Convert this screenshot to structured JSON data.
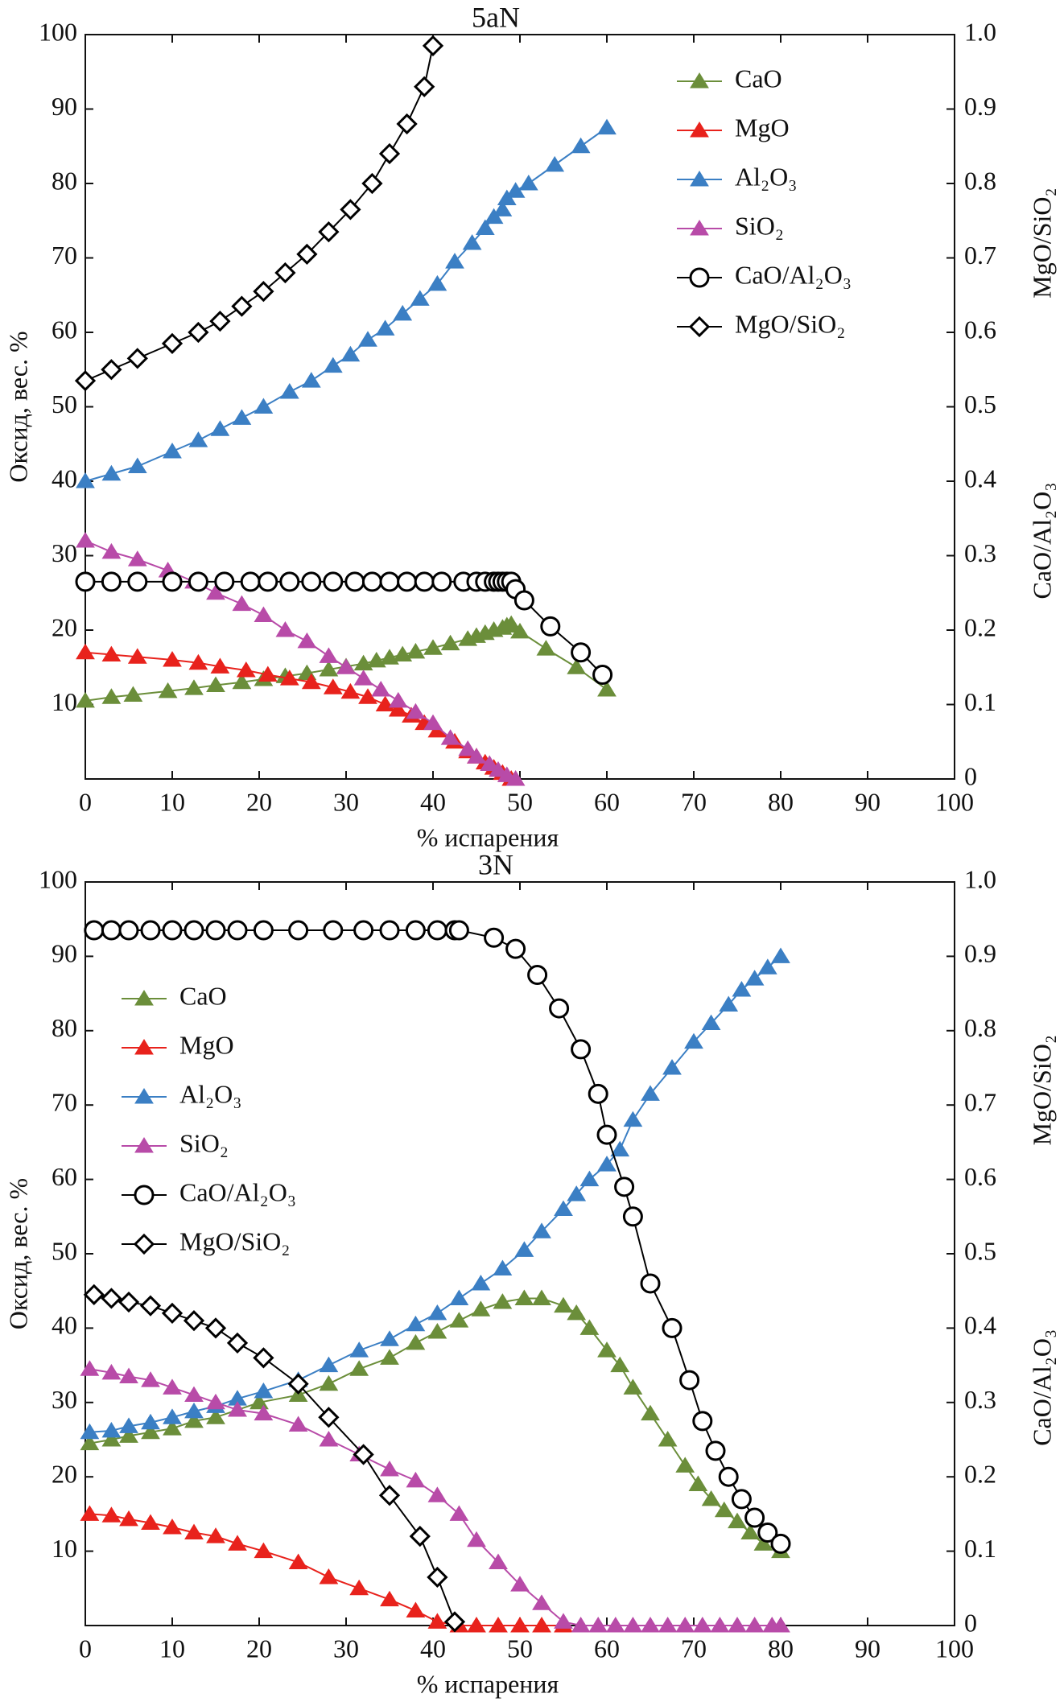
{
  "chart_data": [
    {
      "type": "line",
      "title": "5aN",
      "xlabel": "% испарения",
      "ylabel": "Оксид, вес. %",
      "y2labels": [
        "MgO/SiO₂",
        "CaO/Al₂O₃"
      ],
      "xlim": [
        0,
        100
      ],
      "ylim": [
        0,
        100
      ],
      "y2lim": [
        0,
        1
      ],
      "xticks": [
        0,
        10,
        20,
        30,
        40,
        50,
        60,
        70,
        80,
        90,
        100
      ],
      "yticks": [
        10,
        20,
        30,
        40,
        50,
        60,
        70,
        80,
        90,
        100
      ],
      "y2ticks": [
        0,
        0.1,
        0.2,
        0.3,
        0.4,
        0.5,
        0.6,
        0.7,
        0.8,
        0.9,
        {
          "value": 1,
          "label": "1.0"
        }
      ],
      "legend": "upper right",
      "series": [
        {
          "name": "CaO",
          "color": "#6b8e3a",
          "marker": "triangle",
          "x": [
            0,
            3,
            5.5,
            9.5,
            12.5,
            15,
            18,
            20.5,
            23,
            25.5,
            28,
            30,
            32,
            33.5,
            35,
            36.5,
            38,
            40,
            42,
            44,
            45,
            46,
            47,
            48,
            48.5,
            49,
            50,
            53,
            56.5,
            60
          ],
          "values": [
            10.5,
            11,
            11.3,
            11.8,
            12.2,
            12.6,
            13,
            13.4,
            13.8,
            14.2,
            14.7,
            15.1,
            15.5,
            15.9,
            16.3,
            16.7,
            17.1,
            17.6,
            18.2,
            18.8,
            19.2,
            19.6,
            20,
            20.3,
            20.6,
            20.8,
            19.8,
            17.5,
            15,
            12
          ]
        },
        {
          "name": "MgO",
          "color": "#e8221c",
          "marker": "triangle",
          "x": [
            0,
            3,
            6,
            10,
            13,
            15.5,
            18.5,
            21,
            23.5,
            26,
            28.5,
            30.5,
            32.5,
            34.5,
            36,
            37.5,
            39,
            40.5,
            42.5,
            44,
            45,
            46,
            47,
            48,
            49
          ],
          "values": [
            17,
            16.7,
            16.4,
            16,
            15.6,
            15.1,
            14.6,
            14,
            13.5,
            13,
            12.3,
            11.7,
            11,
            10,
            9.3,
            8.5,
            7.5,
            6.5,
            5,
            3.7,
            3,
            2.2,
            1.5,
            0.8,
            0
          ]
        },
        {
          "name": "Al₂O₃",
          "color": "#3b7fc4",
          "marker": "triangle",
          "x": [
            0,
            3,
            6,
            10,
            13,
            15.5,
            18,
            20.5,
            23.5,
            26,
            28.5,
            30.5,
            32.5,
            34.5,
            36.5,
            38.5,
            40.5,
            42.5,
            44.5,
            46,
            47,
            48,
            48.5,
            49.5,
            51,
            54,
            57,
            60
          ],
          "values": [
            40,
            41,
            42,
            44,
            45.5,
            47,
            48.5,
            50,
            52,
            53.5,
            55.5,
            57,
            59,
            60.5,
            62.5,
            64.5,
            66.5,
            69.5,
            72,
            74,
            75.5,
            76.5,
            78,
            79,
            80,
            82.5,
            85,
            87.5
          ]
        },
        {
          "name": "SiO₂",
          "color": "#b84ba8",
          "marker": "triangle",
          "x": [
            0,
            3,
            6,
            9.5,
            12.5,
            15,
            18,
            20.5,
            23,
            25.5,
            28,
            30,
            32,
            34,
            36,
            38,
            40,
            42,
            44,
            45,
            46.5,
            47.5,
            48.5,
            49.5
          ],
          "values": [
            32,
            30.5,
            29.5,
            28,
            26.5,
            25,
            23.5,
            22,
            20,
            18.5,
            16.5,
            15,
            13.5,
            12,
            10.5,
            9,
            7.5,
            5.5,
            4,
            3,
            2,
            1.2,
            0.5,
            0
          ]
        },
        {
          "name": "CaO/Al₂O₃",
          "color": "#000000",
          "marker": "circle",
          "axis": "y2",
          "x": [
            0,
            3,
            6,
            10,
            13,
            16,
            19,
            21,
            23.5,
            26,
            28.5,
            31,
            33,
            35,
            37,
            39,
            41,
            43.5,
            45,
            46,
            47,
            47.5,
            48,
            48.5,
            49,
            49.5,
            50.5,
            53.5,
            57,
            59.5
          ],
          "values": [
            0.265,
            0.265,
            0.265,
            0.265,
            0.265,
            0.265,
            0.265,
            0.265,
            0.265,
            0.265,
            0.265,
            0.265,
            0.265,
            0.265,
            0.265,
            0.265,
            0.265,
            0.265,
            0.265,
            0.265,
            0.265,
            0.265,
            0.265,
            0.265,
            0.265,
            0.255,
            0.24,
            0.205,
            0.17,
            0.14
          ]
        },
        {
          "name": "MgO/SiO₂",
          "color": "#000000",
          "marker": "diamond",
          "axis": "y2",
          "x": [
            0,
            3,
            6,
            10,
            13,
            15.5,
            18,
            20.5,
            23,
            25.5,
            28,
            30.5,
            33,
            35,
            37,
            39,
            40
          ],
          "values": [
            0.535,
            0.55,
            0.565,
            0.585,
            0.6,
            0.615,
            0.635,
            0.655,
            0.68,
            0.705,
            0.735,
            0.765,
            0.8,
            0.84,
            0.88,
            0.93,
            0.985
          ]
        }
      ]
    },
    {
      "type": "line",
      "title": "3N",
      "xlabel": "% испарения",
      "ylabel": "Оксид, вес. %",
      "y2labels": [
        "MgO/SiO₂",
        "CaO/Al₂O₃"
      ],
      "xlim": [
        0,
        100
      ],
      "ylim": [
        0,
        100
      ],
      "y2lim": [
        0,
        1
      ],
      "xticks": [
        0,
        10,
        20,
        30,
        40,
        50,
        60,
        70,
        80,
        90,
        100
      ],
      "yticks": [
        10,
        20,
        30,
        40,
        50,
        60,
        70,
        80,
        90,
        100
      ],
      "y2ticks": [
        0,
        0.1,
        0.2,
        0.3,
        0.4,
        0.5,
        0.6,
        0.7,
        0.8,
        0.9,
        {
          "value": 1,
          "label": "1.0"
        }
      ],
      "legend": "upper left",
      "series": [
        {
          "name": "CaO",
          "color": "#6b8e3a",
          "marker": "triangle",
          "x": [
            0.5,
            3,
            5,
            7.5,
            10,
            12.5,
            15,
            17.5,
            20,
            24.5,
            28,
            31.5,
            35,
            38,
            40.5,
            43,
            45.5,
            48,
            50.5,
            52.5,
            55,
            56.5,
            58,
            60,
            61.5,
            63,
            65,
            67,
            69,
            70.5,
            72,
            73.5,
            75,
            76.5,
            78,
            80
          ],
          "values": [
            24.5,
            25,
            25.5,
            26,
            26.5,
            27.5,
            28,
            29,
            30,
            31,
            32.5,
            34.5,
            36,
            38,
            39.5,
            41,
            42.5,
            43.5,
            44,
            44,
            43,
            42,
            40,
            37,
            35,
            32,
            28.5,
            25,
            21.5,
            19,
            17,
            15.5,
            14,
            12.5,
            11,
            10
          ]
        },
        {
          "name": "MgO",
          "color": "#e8221c",
          "marker": "triangle",
          "x": [
            0.5,
            3,
            5,
            7.5,
            10,
            12.5,
            15,
            17.5,
            20.5,
            24.5,
            28,
            31.5,
            35,
            38,
            40.5,
            43,
            45,
            47.5,
            50,
            52.5,
            55
          ],
          "values": [
            15,
            14.8,
            14.3,
            13.8,
            13.2,
            12.5,
            12,
            11,
            10,
            8.5,
            6.5,
            5,
            3.5,
            2,
            0.5,
            0,
            0,
            0,
            0,
            0,
            0
          ]
        },
        {
          "name": "Al₂O₃",
          "color": "#3b7fc4",
          "marker": "triangle",
          "x": [
            0.5,
            3,
            5,
            7.5,
            10,
            12.5,
            15,
            17.5,
            20.5,
            24.5,
            28,
            31.5,
            35,
            38,
            40.5,
            43,
            45.5,
            48,
            50.5,
            52.5,
            55,
            56.5,
            58,
            60,
            61.5,
            63,
            65,
            67.5,
            70,
            72,
            74,
            75.5,
            77,
            78.5,
            80
          ],
          "values": [
            26,
            26.2,
            26.8,
            27.3,
            28,
            28.8,
            29.5,
            30.5,
            31.5,
            33,
            35,
            37,
            38.5,
            40.5,
            42,
            44,
            46,
            48,
            50.5,
            53,
            56,
            58,
            60,
            62,
            64,
            68,
            71.5,
            75,
            78.5,
            81,
            83.5,
            85.5,
            87,
            88.5,
            90
          ]
        },
        {
          "name": "SiO₂",
          "color": "#b84ba8",
          "marker": "triangle",
          "x": [
            0.5,
            3,
            5,
            7.5,
            10,
            12.5,
            15,
            17.5,
            20.5,
            24.5,
            28,
            31.5,
            35,
            38,
            40.5,
            43,
            45,
            47.5,
            50,
            52.5,
            55,
            57,
            59,
            61,
            63,
            65,
            67,
            69,
            71,
            73,
            75,
            77,
            79,
            80
          ],
          "values": [
            34.5,
            34,
            33.5,
            33,
            32,
            31,
            30,
            29,
            28.5,
            27,
            25,
            23,
            21,
            19.5,
            17.5,
            15,
            11.5,
            8.5,
            5.5,
            3,
            0.5,
            0,
            0,
            0,
            0,
            0,
            0,
            0,
            0,
            0,
            0,
            0,
            0,
            0
          ]
        },
        {
          "name": "CaO/Al₂O₃",
          "color": "#000000",
          "marker": "circle",
          "axis": "y2",
          "x": [
            1,
            3,
            5,
            7.5,
            10,
            12.5,
            15,
            17.5,
            20.5,
            24.5,
            28.5,
            32,
            35,
            38,
            40.5,
            42.5,
            43,
            47,
            49.5,
            52,
            54.5,
            57,
            59,
            60,
            62,
            63,
            65,
            67.5,
            69.5,
            71,
            72.5,
            74,
            75.5,
            77,
            78.5,
            80
          ],
          "values": [
            0.935,
            0.935,
            0.935,
            0.935,
            0.935,
            0.935,
            0.935,
            0.935,
            0.935,
            0.935,
            0.935,
            0.935,
            0.935,
            0.935,
            0.935,
            0.935,
            0.935,
            0.925,
            0.91,
            0.875,
            0.83,
            0.775,
            0.715,
            0.66,
            0.59,
            0.55,
            0.46,
            0.4,
            0.33,
            0.275,
            0.235,
            0.2,
            0.17,
            0.145,
            0.125,
            0.11
          ]
        },
        {
          "name": "MgO/SiO₂",
          "color": "#000000",
          "marker": "diamond",
          "axis": "y2",
          "x": [
            1,
            3,
            5,
            7.5,
            10,
            12.5,
            15,
            17.5,
            20.5,
            24.5,
            28,
            32,
            35,
            38.5,
            40.5,
            42.5
          ],
          "values": [
            0.445,
            0.44,
            0.435,
            0.43,
            0.42,
            0.41,
            0.4,
            0.38,
            0.36,
            0.325,
            0.28,
            0.23,
            0.175,
            0.12,
            0.065,
            0.005
          ]
        }
      ]
    }
  ]
}
